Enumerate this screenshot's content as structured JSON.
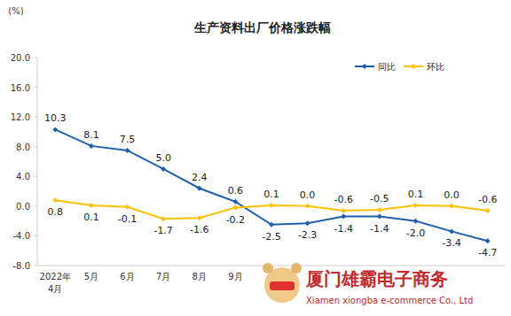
{
  "chart_data": {
    "type": "line",
    "title": "生产资料出厂价格涨跌幅",
    "y_label": "(%)",
    "categories": [
      "2022年4月",
      "5月",
      "6月",
      "7月",
      "8月",
      "9月",
      null,
      null,
      null,
      null,
      null,
      null,
      null
    ],
    "series": [
      {
        "name": "同比",
        "color": "#1f5fae",
        "marker": "diamond",
        "values": [
          10.3,
          8.1,
          7.5,
          5.0,
          2.4,
          0.6,
          -2.5,
          -2.3,
          -1.4,
          -1.4,
          -2.0,
          -3.4,
          -4.7
        ],
        "value_labels": [
          "10.3",
          "8.1",
          "7.5",
          "5.0",
          "2.4",
          "0.6",
          "-2.5",
          "-2.3",
          "-1.4",
          "-1.4",
          "-2.0",
          "-3.4",
          "-4.7"
        ]
      },
      {
        "name": "环比",
        "color": "#ffc000",
        "marker": "diamond",
        "values": [
          0.8,
          0.1,
          -0.1,
          -1.7,
          -1.6,
          -0.2,
          0.1,
          0.0,
          -0.6,
          -0.5,
          0.1,
          0.0,
          -0.6
        ],
        "value_labels": [
          "0.8",
          "0.1",
          "-0.1",
          "-1.7",
          "-1.6",
          "-0.2",
          "0.1",
          "0.0",
          "-0.6",
          "-0.5",
          "0.1",
          "0.0",
          "-0.6"
        ]
      }
    ],
    "ylim": [
      -8,
      20
    ],
    "yticks": [
      {
        "value": -8,
        "label": "-8.0"
      },
      {
        "value": -4,
        "label": "-4.0"
      },
      {
        "value": 0,
        "label": "0.0"
      },
      {
        "value": 4,
        "label": "4.0"
      },
      {
        "value": 8,
        "label": "8.0"
      },
      {
        "value": 12,
        "label": "12.0"
      },
      {
        "value": 16,
        "label": "16.0"
      },
      {
        "value": 20,
        "label": "20.0"
      }
    ],
    "grid": false,
    "legend": "top-right",
    "data_labels": true,
    "annotations": [
      "厦门雄霸电子商务",
      "Xiamen xiongba e-commerce Co., Ltd"
    ]
  }
}
